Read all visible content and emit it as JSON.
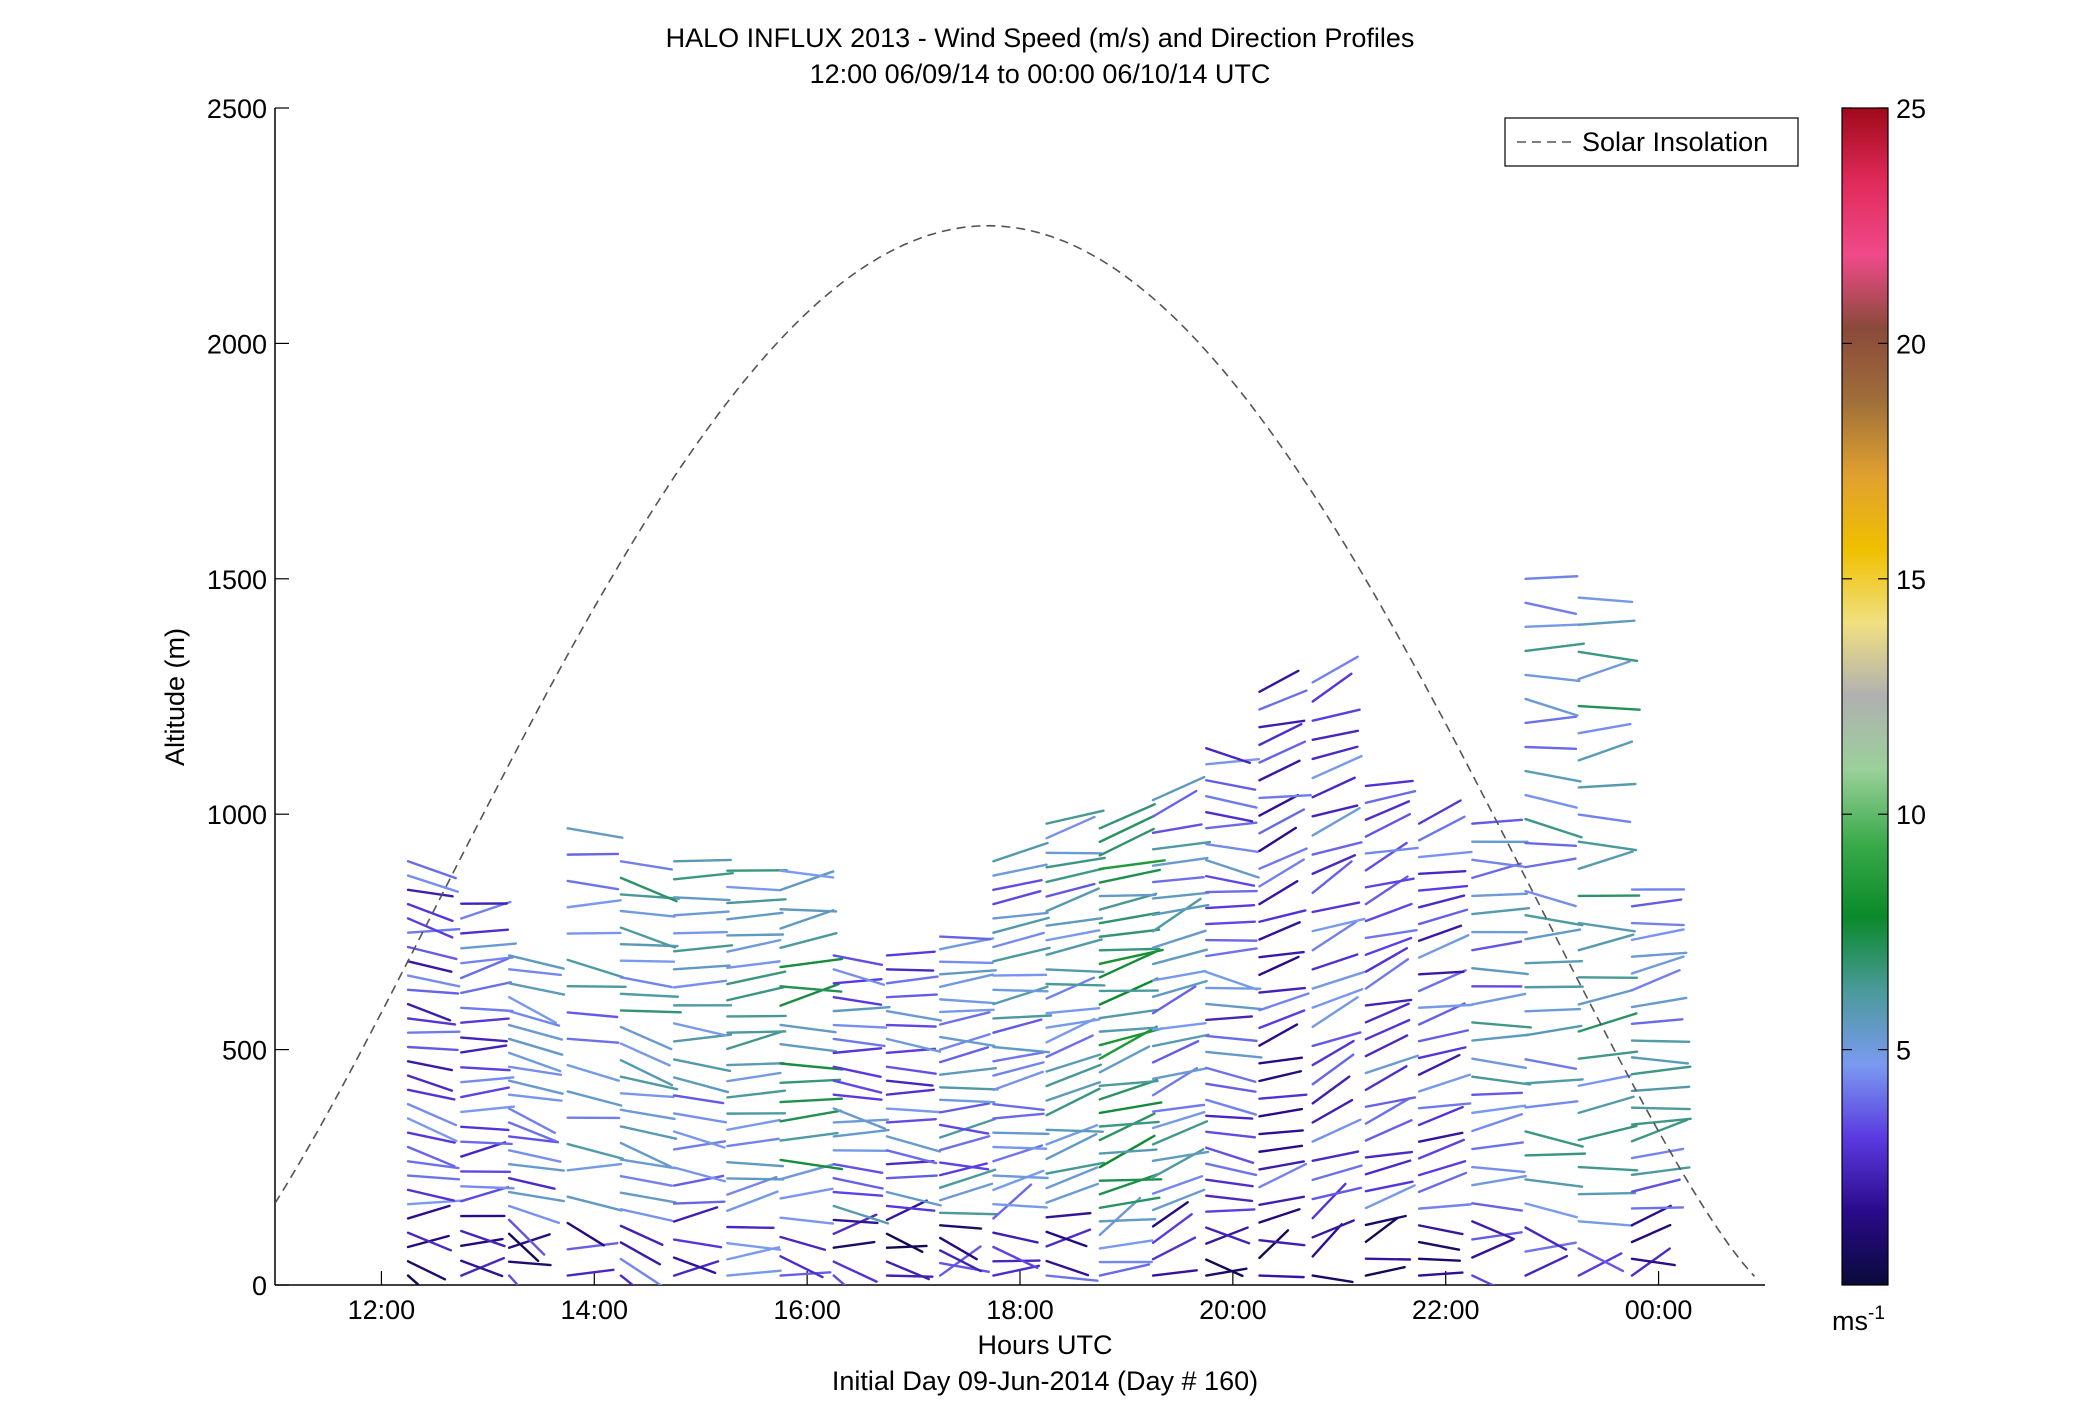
{
  "chart_data": {
    "type": "wind-barb-profile",
    "title": "HALO INFLUX 2013 - Wind Speed (m/s) and Direction Profiles",
    "subtitle": "12:00 06/09/14 to 00:00 06/10/14  UTC",
    "xlabel": "Hours UTC",
    "xlabel2": "Initial Day 09-Jun-2014 (Day # 160)",
    "ylabel": "Altitude (m)",
    "xlim": [
      11.0,
      25.0
    ],
    "ylim": [
      0,
      2500
    ],
    "xticks": [
      {
        "value": 12,
        "label": "12:00"
      },
      {
        "value": 14,
        "label": "14:00"
      },
      {
        "value": 16,
        "label": "16:00"
      },
      {
        "value": 18,
        "label": "18:00"
      },
      {
        "value": 20,
        "label": "20:00"
      },
      {
        "value": 22,
        "label": "22:00"
      },
      {
        "value": 24,
        "label": "00:00"
      }
    ],
    "yticks": [
      0,
      500,
      1000,
      1500,
      2000,
      2500
    ],
    "colorbar": {
      "range": [
        0,
        25
      ],
      "ticks": [
        5,
        10,
        15,
        20,
        25
      ],
      "unit_label": "ms",
      "unit_exp": "-1",
      "colors": [
        "#0a0a3a",
        "#2a0a8a",
        "#5a3ae0",
        "#7a9af0",
        "#4a9a9a",
        "#0a8a2a",
        "#3aaa4a",
        "#9ad09a",
        "#b0b0b0",
        "#f0e080",
        "#f0c000",
        "#e0a030",
        "#a0703a",
        "#8a4a3a",
        "#f04a8a",
        "#e02a5a",
        "#a00a1a"
      ]
    },
    "legend": {
      "position": "top-right",
      "entries": [
        {
          "name": "Solar Insolation",
          "style": "dashed",
          "color": "#555555"
        }
      ]
    },
    "solar_insolation": {
      "start_x": 11.0,
      "end_x": 24.9,
      "peak_x": 17.7,
      "peak_y": 2250,
      "edge_y": 250
    },
    "profiles": [
      {
        "x": 12.25,
        "count": 30,
        "top": 900,
        "dir": 10,
        "speed": 3.5
      },
      {
        "x": 12.75,
        "count": 26,
        "top": 810,
        "dir": -8,
        "speed": 3.8
      },
      {
        "x": 13.2,
        "count": 24,
        "top": 700,
        "dir": 15,
        "speed": 4.2
      },
      {
        "x": 13.75,
        "count": 18,
        "top": 970,
        "dir": 5,
        "speed": 5.0
      },
      {
        "x": 14.25,
        "count": 26,
        "top": 900,
        "dir": 12,
        "speed": 5.5
      },
      {
        "x": 14.75,
        "count": 24,
        "top": 900,
        "dir": 3,
        "speed": 5.2
      },
      {
        "x": 15.25,
        "count": 26,
        "top": 880,
        "dir": -10,
        "speed": 5.6
      },
      {
        "x": 15.75,
        "count": 22,
        "top": 880,
        "dir": -6,
        "speed": 6.0
      },
      {
        "x": 16.25,
        "count": 24,
        "top": 700,
        "dir": 8,
        "speed": 4.4
      },
      {
        "x": 16.75,
        "count": 24,
        "top": 700,
        "dir": 5,
        "speed": 4.0
      },
      {
        "x": 17.25,
        "count": 28,
        "top": 740,
        "dir": -4,
        "speed": 4.6
      },
      {
        "x": 17.75,
        "count": 30,
        "top": 900,
        "dir": -8,
        "speed": 4.8
      },
      {
        "x": 18.25,
        "count": 32,
        "top": 980,
        "dir": -12,
        "speed": 5.0
      },
      {
        "x": 18.75,
        "count": 34,
        "top": 970,
        "dir": -15,
        "speed": 7.0
      },
      {
        "x": 19.25,
        "count": 30,
        "top": 1030,
        "dir": -20,
        "speed": 5.0
      },
      {
        "x": 19.75,
        "count": 34,
        "top": 1140,
        "dir": 6,
        "speed": 4.0
      },
      {
        "x": 20.25,
        "count": 34,
        "top": 1260,
        "dir": -18,
        "speed": 3.0
      },
      {
        "x": 20.75,
        "count": 32,
        "top": 1280,
        "dir": -25,
        "speed": 3.6
      },
      {
        "x": 21.25,
        "count": 30,
        "top": 1060,
        "dir": -20,
        "speed": 3.8
      },
      {
        "x": 21.75,
        "count": 28,
        "top": 980,
        "dir": -15,
        "speed": 3.4
      },
      {
        "x": 22.25,
        "count": 26,
        "top": 980,
        "dir": -5,
        "speed": 5.0
      },
      {
        "x": 22.75,
        "count": 30,
        "top": 1500,
        "dir": 4,
        "speed": 5.2
      },
      {
        "x": 23.25,
        "count": 26,
        "top": 1460,
        "dir": -6,
        "speed": 5.6
      },
      {
        "x": 23.75,
        "count": 24,
        "top": 840,
        "dir": -8,
        "speed": 5.0
      }
    ]
  }
}
